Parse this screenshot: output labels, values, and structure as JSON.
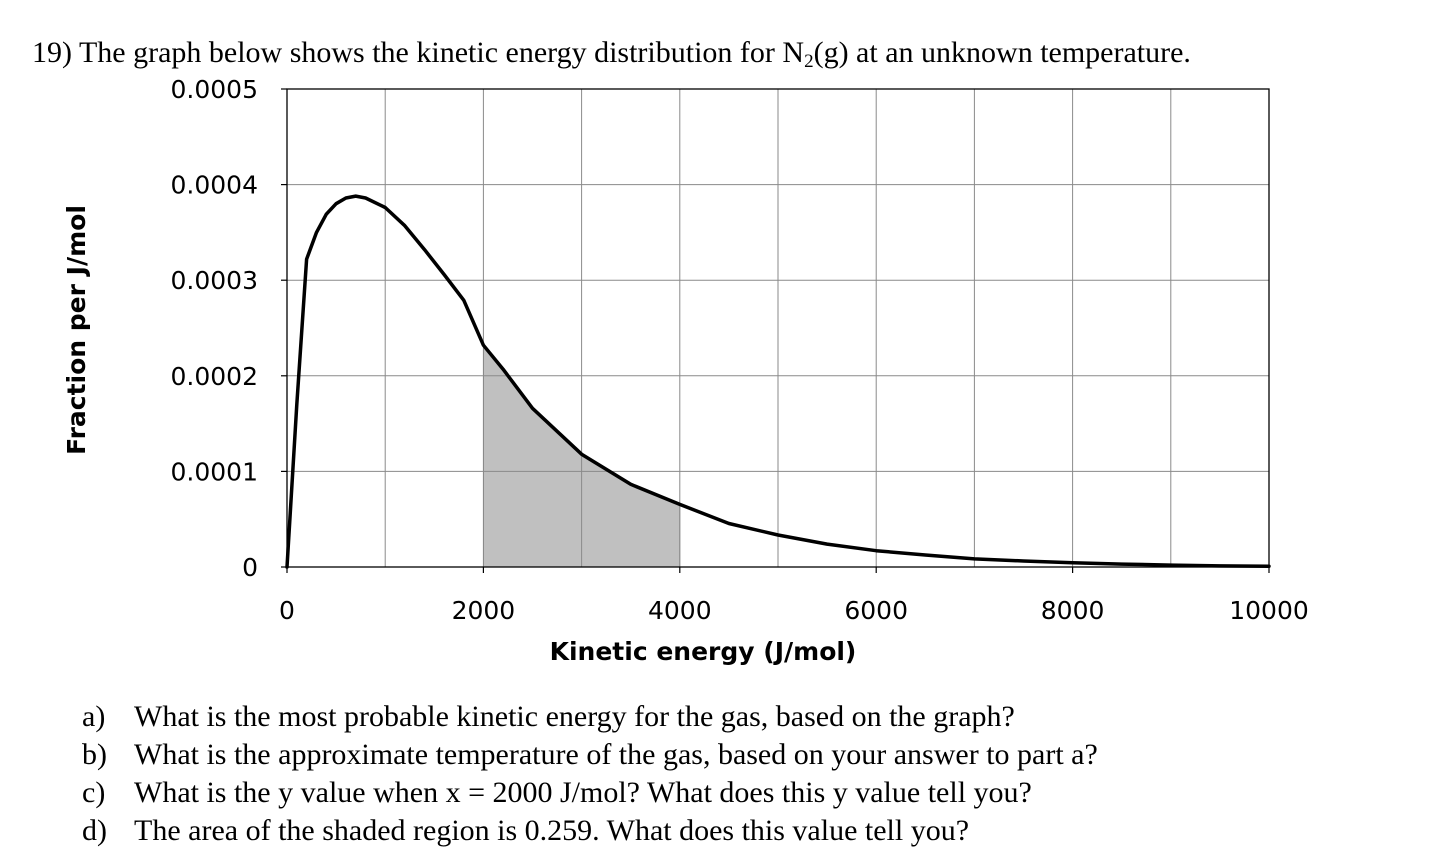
{
  "question": {
    "prefix": "19) The graph below shows the kinetic energy distribution for N",
    "subscript": "2",
    "suffix": "(g) at an unknown temperature."
  },
  "chart_data": {
    "type": "line",
    "xlabel": "Kinetic energy (J/mol)",
    "ylabel": "Fraction per J/mol",
    "xlim": [
      0,
      10000
    ],
    "ylim": [
      0,
      0.0005
    ],
    "x_ticks": [
      "0",
      "2000",
      "4000",
      "6000",
      "8000",
      "10000"
    ],
    "y_ticks": [
      "0",
      "0.0001",
      "0.0002",
      "0.0003",
      "0.0004",
      "0.0005"
    ],
    "grid": true,
    "shaded_region": {
      "x_from": 2000,
      "x_to": 4000,
      "color": "#c0c0c0"
    },
    "series": [
      {
        "x": [
          0,
          100,
          200,
          300,
          400,
          500,
          600,
          700,
          800,
          1000,
          1200,
          1400,
          1600,
          1800,
          2000,
          2200,
          2500,
          3000,
          3500,
          4000,
          4500,
          5000,
          5500,
          6000,
          6500,
          7000,
          7500,
          8000,
          8500,
          9000,
          9500,
          10000
        ],
        "y": [
          0,
          0.00017,
          0.000322,
          0.00035,
          0.000369,
          0.00038,
          0.000386,
          0.000388,
          0.000386,
          0.000376,
          0.000357,
          0.000332,
          0.000306,
          0.000279,
          0.000232,
          0.000207,
          0.000166,
          0.000118,
          8.65e-05,
          6.55e-05,
          4.55e-05,
          3.35e-05,
          2.4e-05,
          1.7e-05,
          1.25e-05,
          8.5e-06,
          6.3e-06,
          4.5e-06,
          3e-06,
          2e-06,
          1.2e-06,
          8e-07
        ],
        "color": "#000000"
      }
    ]
  },
  "questions": [
    {
      "letter": "a)",
      "text": "What is the most probable kinetic energy for the gas, based on the graph?"
    },
    {
      "letter": "b)",
      "text": "What is the approximate temperature of the gas, based on your answer to part a?"
    },
    {
      "letter": "c)",
      "text": "What is the y value when x = 2000 J/mol? What does this y value tell you?"
    },
    {
      "letter": "d)",
      "text": "The area of the shaded region is 0.259. What does this value tell you?"
    }
  ]
}
